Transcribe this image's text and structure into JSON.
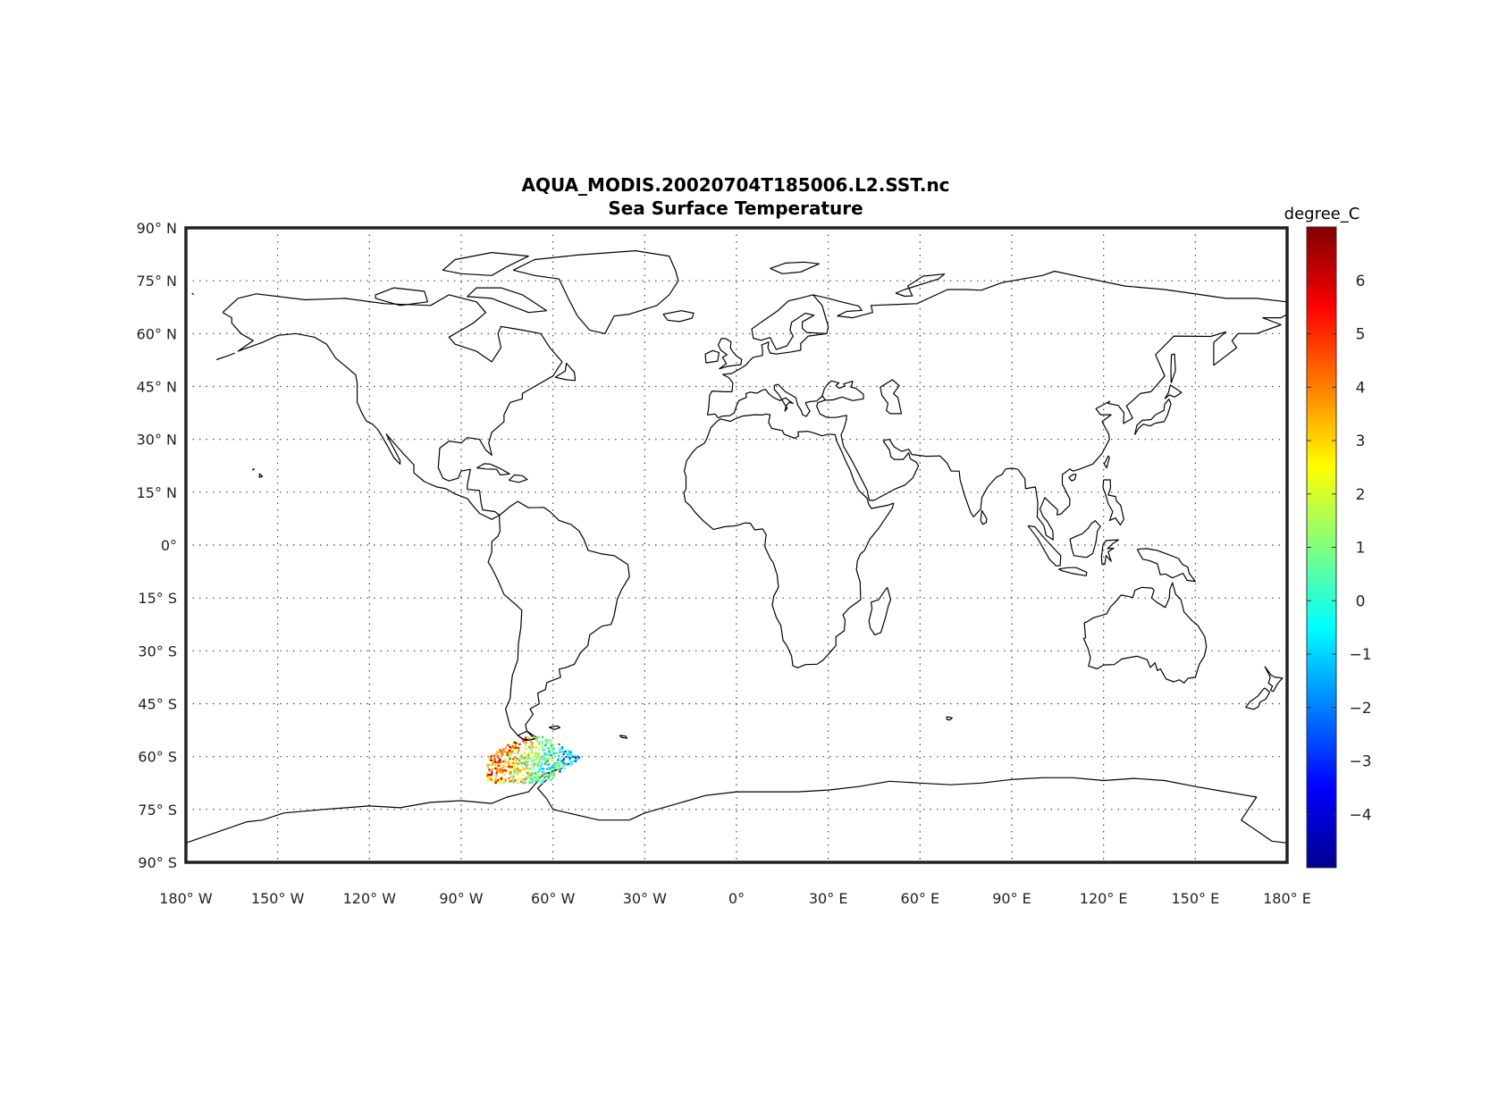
{
  "title_line1": "AQUA_MODIS.20020704T185006.L2.SST.nc",
  "title_line2": "Sea Surface Temperature",
  "colorbar": {
    "unit": "degree_C",
    "min": -5,
    "max": 7,
    "ticks": [
      "6",
      "5",
      "4",
      "3",
      "2",
      "1",
      "0",
      "−1",
      "−2",
      "−3",
      "−4"
    ],
    "tick_values": [
      6,
      5,
      4,
      3,
      2,
      1,
      0,
      -1,
      -2,
      -3,
      -4
    ],
    "colormap": "jet"
  },
  "lat_labels": [
    {
      "value": 90,
      "label": "90° N"
    },
    {
      "value": 75,
      "label": "75° N"
    },
    {
      "value": 60,
      "label": "60° N"
    },
    {
      "value": 45,
      "label": "45° N"
    },
    {
      "value": 30,
      "label": "30° N"
    },
    {
      "value": 15,
      "label": "15° N"
    },
    {
      "value": 0,
      "label": "0°"
    },
    {
      "value": -15,
      "label": "15° S"
    },
    {
      "value": -30,
      "label": "30° S"
    },
    {
      "value": -45,
      "label": "45° S"
    },
    {
      "value": -60,
      "label": "60° S"
    },
    {
      "value": -75,
      "label": "75° S"
    },
    {
      "value": -90,
      "label": "90° S"
    }
  ],
  "lon_labels": [
    {
      "value": -180,
      "label": "180° W"
    },
    {
      "value": -150,
      "label": "150° W"
    },
    {
      "value": -120,
      "label": "120° W"
    },
    {
      "value": -90,
      "label": "90° W"
    },
    {
      "value": -60,
      "label": "60° W"
    },
    {
      "value": -30,
      "label": "30° W"
    },
    {
      "value": 0,
      "label": "0°"
    },
    {
      "value": 30,
      "label": "30° E"
    },
    {
      "value": 60,
      "label": "60° E"
    },
    {
      "value": 90,
      "label": "90° E"
    },
    {
      "value": 120,
      "label": "120° E"
    },
    {
      "value": 150,
      "label": "150° E"
    },
    {
      "value": 180,
      "label": "180° E"
    }
  ],
  "sst_swath": {
    "lon_range": [
      -82,
      -48
    ],
    "lat_range": [
      -68,
      -54
    ],
    "value_range": [
      -4.5,
      6.5
    ]
  }
}
